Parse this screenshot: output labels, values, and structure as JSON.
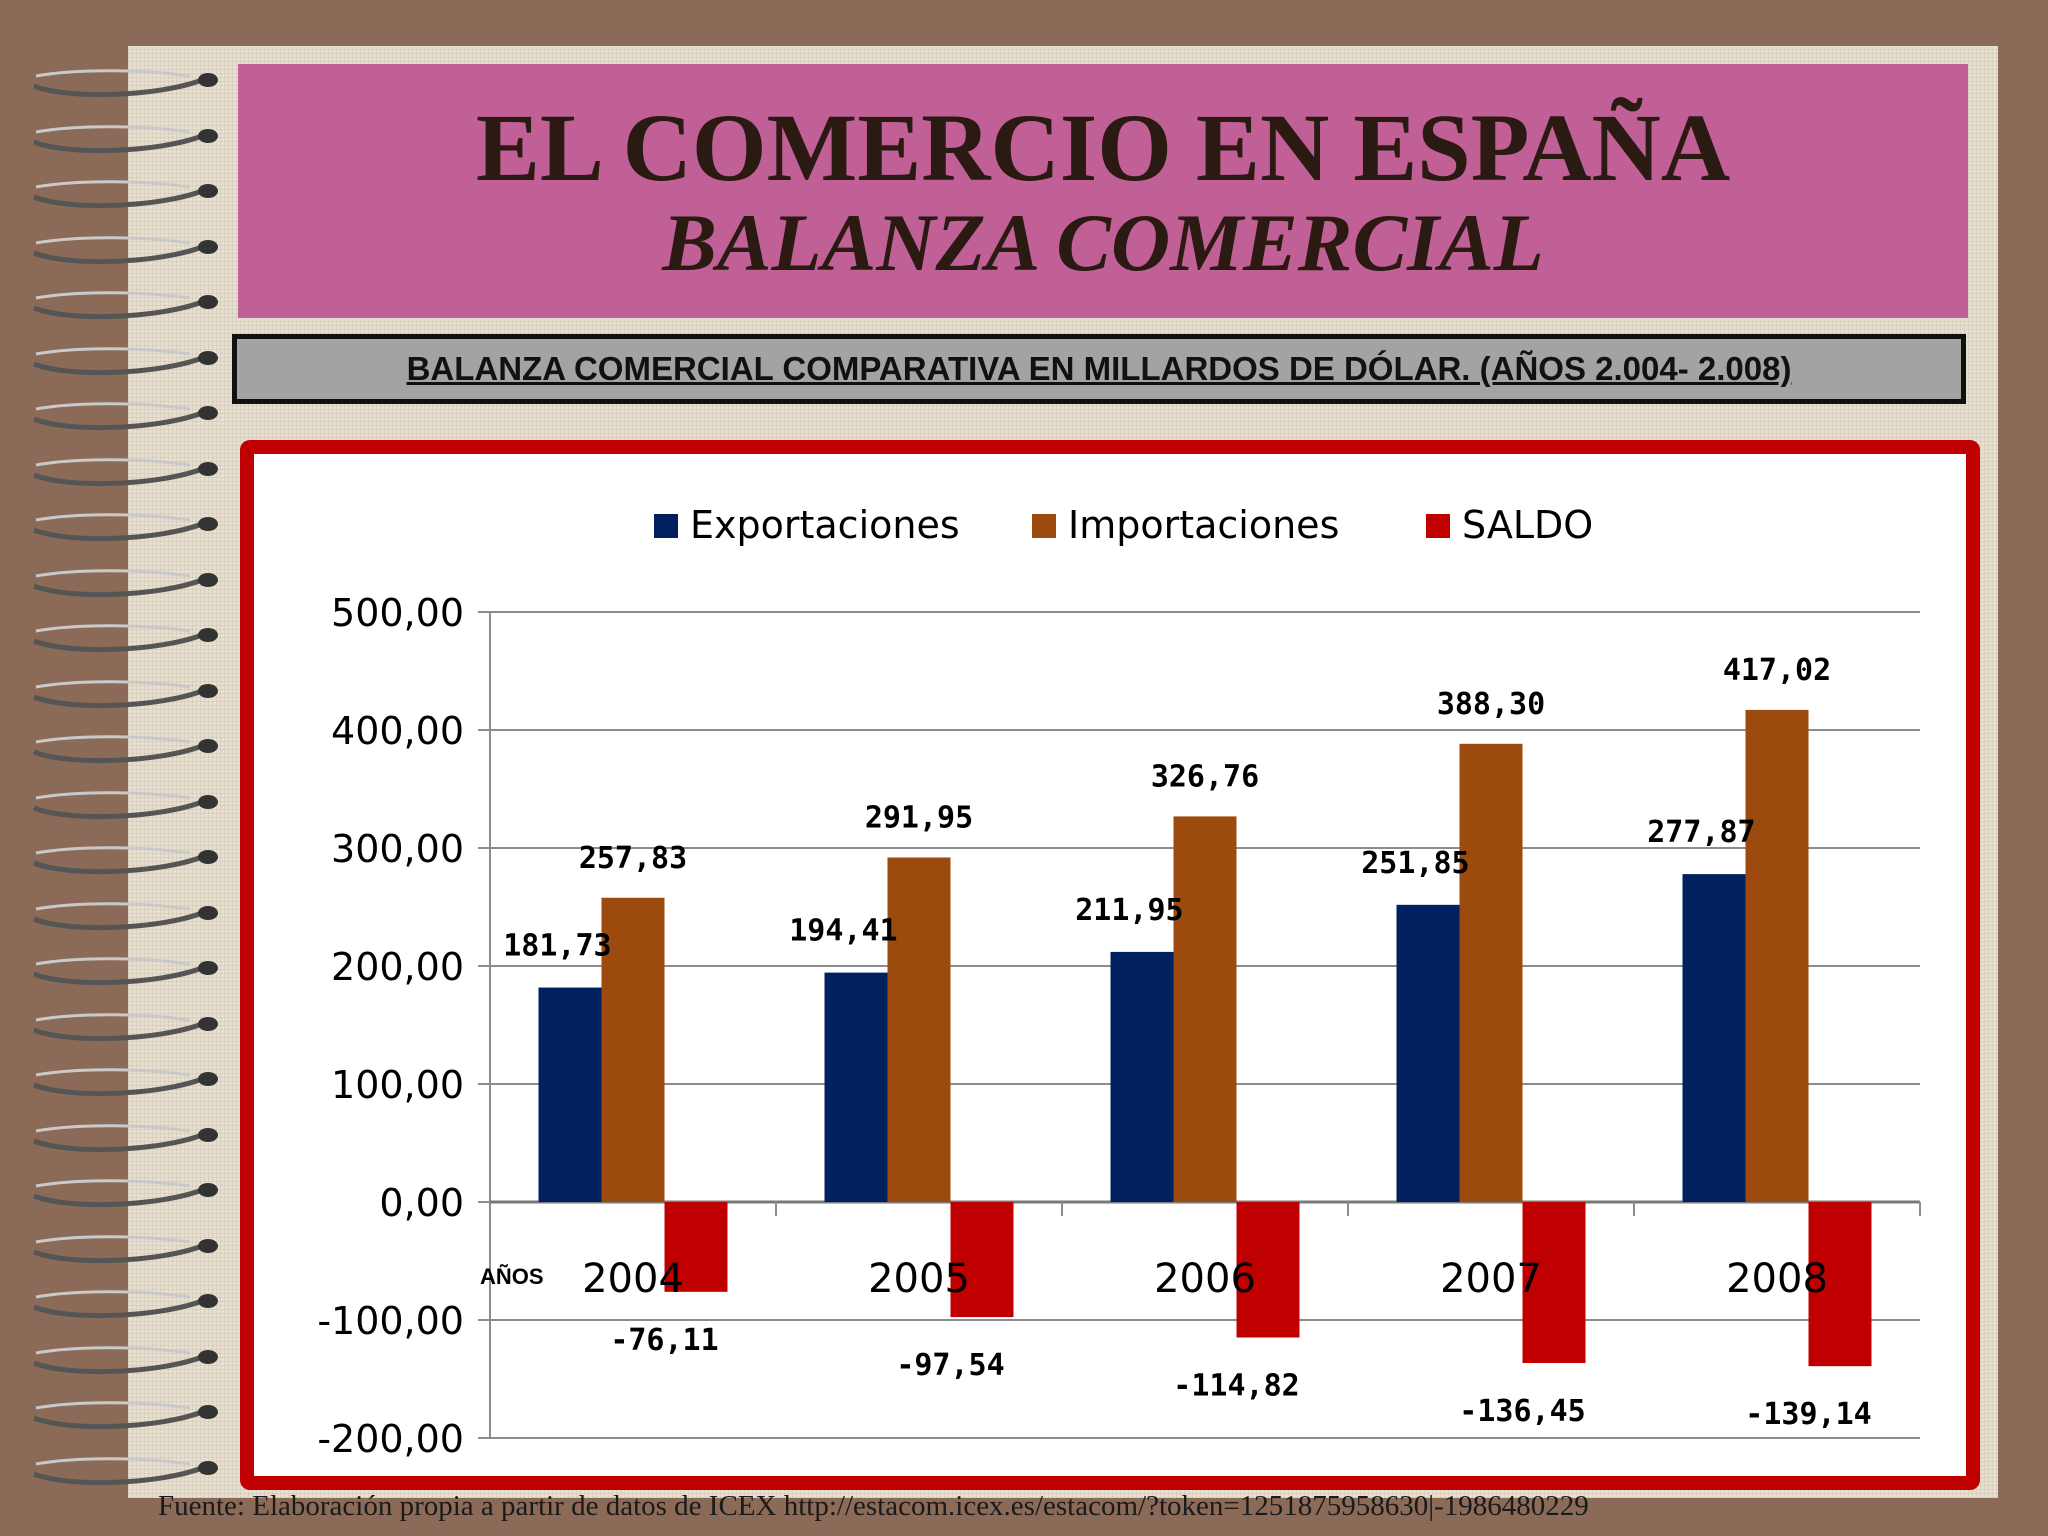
{
  "slide": {
    "title": "EL COMERCIO EN ESPAÑA",
    "subtitle": "BALANZA COMERCIAL",
    "heading": "BALANZA COMERCIAL COMPARATIVA EN MILLARDOS DE DÓLAR. (AÑOS 2.004- 2.008)",
    "footer": "Fuente: Elaboración propia a partir de datos de ICEX http://estacom.icex.es/estacom/?token=1251875958630|-1986480229"
  },
  "colors": {
    "background": "#8b6b57",
    "title_box": "#c06096",
    "frame": "#c00000",
    "exportaciones": "#002060",
    "importaciones": "#9c4a0e",
    "saldo": "#c00000"
  },
  "chart_data": {
    "type": "bar",
    "categories": [
      "2004",
      "2005",
      "2006",
      "2007",
      "2008"
    ],
    "series": [
      {
        "name": "Exportaciones",
        "values": [
          181.73,
          194.41,
          211.95,
          251.85,
          277.87
        ],
        "labels": [
          "181,73",
          "194,41",
          "211,95",
          "251,85",
          "277,87"
        ]
      },
      {
        "name": "Importaciones",
        "values": [
          257.83,
          291.95,
          326.76,
          388.3,
          417.02
        ],
        "labels": [
          "257,83",
          "291,95",
          "326,76",
          "388,30",
          "417,02"
        ]
      },
      {
        "name": "SALDO",
        "values": [
          -76.11,
          -97.54,
          -114.82,
          -136.45,
          -139.14
        ],
        "labels": [
          "-76,11",
          "-97,54",
          "-114,82",
          "-136,45",
          "-139,14"
        ]
      }
    ],
    "xlabel": "AÑOS",
    "ylim": [
      -200,
      500
    ],
    "yticks": [
      500,
      400,
      300,
      200,
      100,
      0,
      -100,
      -200
    ],
    "ytick_labels": [
      "500,00",
      "400,00",
      "300,00",
      "200,00",
      "100,00",
      "0,00",
      "-100,00",
      "-200,00"
    ],
    "grid": true,
    "legend_position": "top"
  }
}
